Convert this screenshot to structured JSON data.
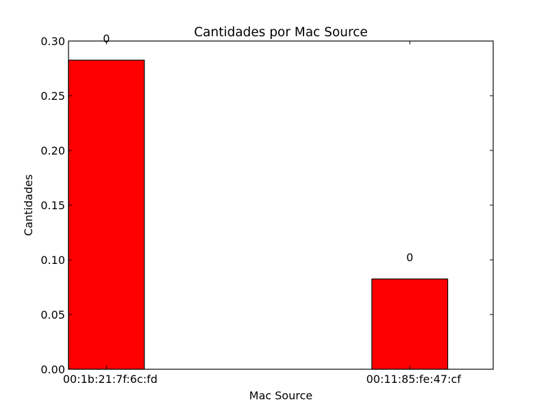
{
  "chart_data": {
    "type": "bar",
    "title": "Cantidades por Mac Source",
    "xlabel": "Mac Source",
    "ylabel": "Cantidades",
    "categories": [
      "00:1b:21:7f:6c:fd",
      "00:11:85:fe:47:cf"
    ],
    "values": [
      0.2825,
      0.0825
    ],
    "bar_labels": [
      "0",
      "0"
    ],
    "ylim": [
      0,
      0.3
    ],
    "yticks": [
      0.0,
      0.05,
      0.1,
      0.15,
      0.2,
      0.25,
      0.3
    ],
    "ytick_labels": [
      "0.00",
      "0.05",
      "0.10",
      "0.15",
      "0.20",
      "0.25",
      "0.30"
    ],
    "bar_color": "#ff0000",
    "edge_color": "#000000",
    "grid": false,
    "legend": "none"
  }
}
